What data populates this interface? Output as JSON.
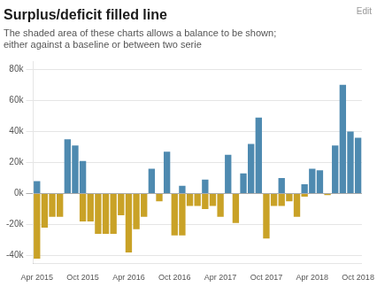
{
  "chart_data": {
    "type": "bar",
    "title": "Surplus/deficit filled line",
    "subtitle": "The shaded area of these charts allows a balance to be shown;\neither against a baseline or between two serie",
    "annotations": [
      "Edit"
    ],
    "categories": [
      "Apr 2015",
      null,
      null,
      null,
      null,
      null,
      "Oct 2015",
      null,
      null,
      null,
      null,
      null,
      "Apr 2016",
      null,
      null,
      null,
      null,
      null,
      "Oct 2016",
      null,
      null,
      null,
      null,
      null,
      "Apr 2017",
      null,
      null,
      null,
      null,
      null,
      "Oct 2017",
      null,
      null,
      null,
      null,
      null,
      "Apr 2018",
      null,
      null,
      null,
      null,
      null,
      "Oct 2018"
    ],
    "series": [
      {
        "color": "#4e8ab0",
        "values": [
          8000,
          0,
          0,
          0,
          35000,
          31000,
          21000,
          0,
          0,
          0,
          0,
          0,
          0,
          0,
          0,
          16000,
          0,
          27000,
          0,
          5000,
          0,
          0,
          9000,
          0,
          0,
          25000,
          0,
          13000,
          32000,
          49000,
          0,
          0,
          10000,
          0,
          0,
          6000,
          16000,
          15000,
          0,
          31000,
          70000,
          40000,
          36000
        ]
      },
      {
        "color": "#c9a227",
        "values": [
          -42000,
          -22000,
          -15000,
          -15000,
          0,
          0,
          -18000,
          -18000,
          -26000,
          -26000,
          -26000,
          -14000,
          -38000,
          -23000,
          -15000,
          0,
          -5000,
          0,
          -27000,
          -27000,
          -8000,
          -8000,
          -10000,
          -8000,
          -15000,
          0,
          -19000,
          0,
          0,
          0,
          -29000,
          -8000,
          -8000,
          -5000,
          -15000,
          -2000,
          0,
          0,
          -1000,
          0,
          0,
          0,
          0
        ]
      }
    ],
    "stacked": true,
    "ylim": [
      -45000,
      85000
    ],
    "yticks": [
      {
        "value": -40000,
        "label": "-40k"
      },
      {
        "value": -20000,
        "label": "-20k"
      },
      {
        "value": 0,
        "label": "0k"
      },
      {
        "value": 20000,
        "label": "20k"
      },
      {
        "value": 40000,
        "label": "40k"
      },
      {
        "value": 60000,
        "label": "60k"
      },
      {
        "value": 80000,
        "label": "80k"
      }
    ],
    "grid": true
  }
}
